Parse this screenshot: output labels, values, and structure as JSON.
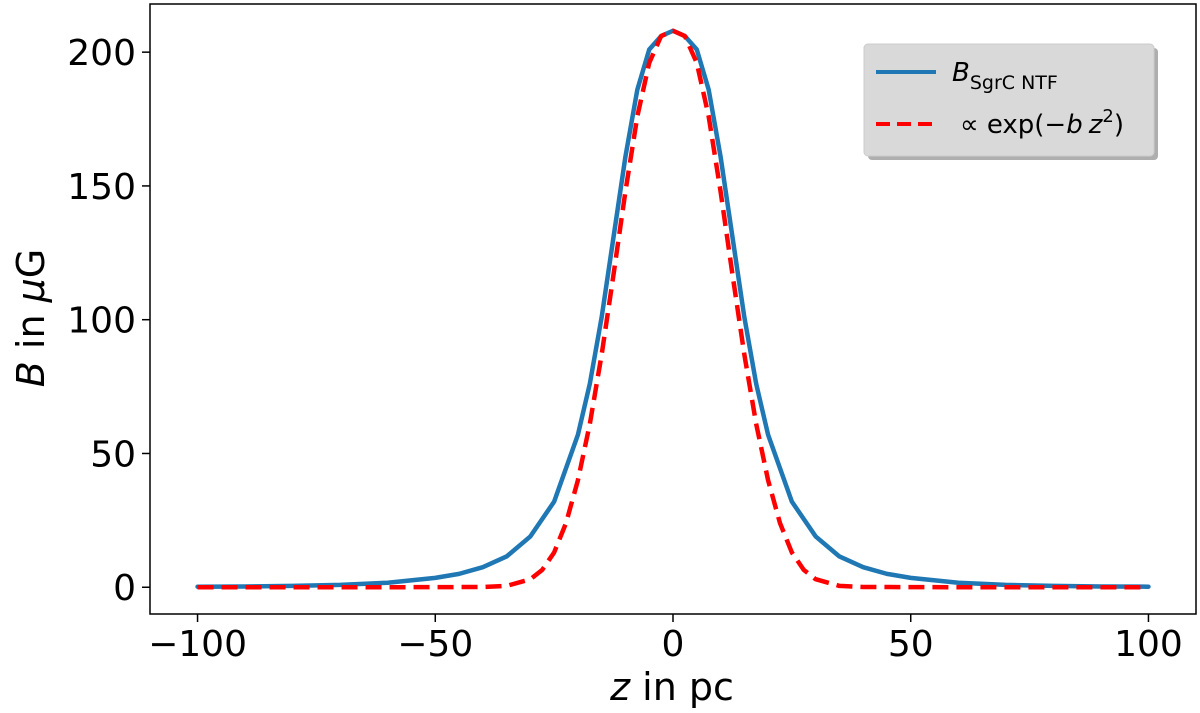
{
  "chart_data": {
    "type": "line",
    "xlabel": {
      "var": "z",
      "rest": " in pc"
    },
    "ylabel": {
      "var": "B",
      "rest_prefix": " in ",
      "mu": "μ",
      "rest_suffix": "G"
    },
    "xlim": [
      -110,
      110
    ],
    "ylim": [
      -10,
      218
    ],
    "xticks": [
      -100,
      -50,
      0,
      50,
      100
    ],
    "xtick_labels": [
      "−100",
      "−50",
      "0",
      "50",
      "100"
    ],
    "yticks": [
      0,
      50,
      100,
      150,
      200
    ],
    "ytick_labels": [
      "0",
      "50",
      "100",
      "150",
      "200"
    ],
    "grid": false,
    "legend_position": "top-right",
    "series": [
      {
        "name": "B_SgrC NTF",
        "legend": {
          "main": "B",
          "sub": "SgrC NTF"
        },
        "style": "solid",
        "color": "#1f77b4",
        "x": [
          -100,
          -90,
          -80,
          -70,
          -60,
          -50,
          -45,
          -40,
          -35,
          -30,
          -25,
          -20,
          -17.5,
          -15,
          -12.5,
          -10,
          -7.5,
          -5,
          -2.5,
          0,
          2.5,
          5,
          7.5,
          10,
          12.5,
          15,
          17.5,
          20,
          25,
          30,
          35,
          40,
          45,
          50,
          60,
          70,
          80,
          90,
          100
        ],
        "y": [
          0.2,
          0.3,
          0.5,
          0.9,
          1.7,
          3.5,
          5,
          7.5,
          11.5,
          19,
          32,
          57,
          76,
          101,
          131,
          161,
          186,
          201,
          206,
          208,
          206,
          201,
          186,
          161,
          131,
          101,
          76,
          57,
          32,
          19,
          11.5,
          7.5,
          5,
          3.5,
          1.7,
          0.9,
          0.5,
          0.3,
          0.2
        ]
      },
      {
        "name": "∝ exp(−b z²)",
        "legend": {
          "prefix": "∝ exp(−",
          "b": "b",
          "z": "z",
          "sup": "2",
          "suffix": ")"
        },
        "style": "dashed",
        "color": "#ff0000",
        "x": [
          -100,
          -60,
          -40,
          -35,
          -30,
          -27.5,
          -25,
          -22.5,
          -20,
          -17.5,
          -15,
          -12.5,
          -10,
          -7.5,
          -5,
          -2.5,
          0,
          2.5,
          5,
          7.5,
          10,
          12.5,
          15,
          17.5,
          20,
          22.5,
          25,
          27.5,
          30,
          35,
          40,
          60,
          100
        ],
        "y": [
          0,
          0,
          0.1,
          0.5,
          3,
          6.5,
          13,
          24,
          40,
          61,
          87,
          117,
          148,
          176,
          196,
          206,
          208,
          206,
          196,
          176,
          148,
          117,
          87,
          61,
          40,
          24,
          13,
          6.5,
          3,
          0.5,
          0.1,
          0,
          0
        ]
      }
    ]
  }
}
